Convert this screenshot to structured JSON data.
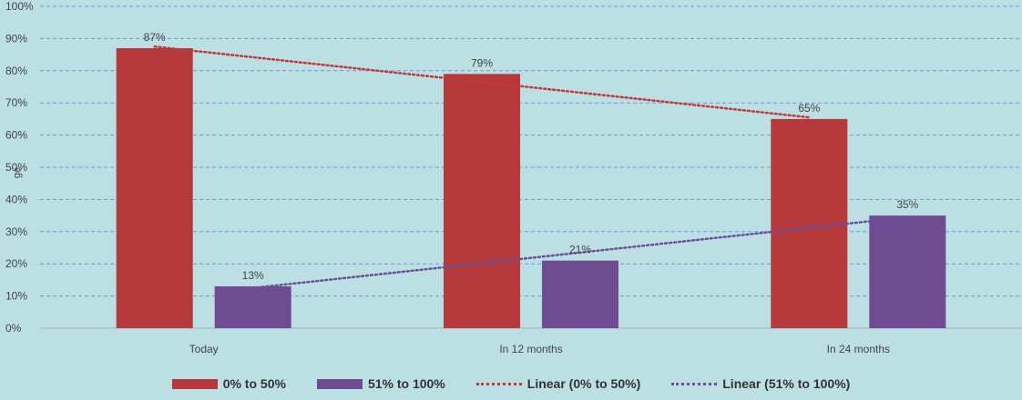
{
  "chart_data": {
    "type": "bar",
    "title": "",
    "xlabel": "",
    "ylabel": "ge",
    "ylim": [
      0,
      100
    ],
    "y_ticks": [
      "0%",
      "10%",
      "20%",
      "30%",
      "40%",
      "50%",
      "60%",
      "70%",
      "80%",
      "90%",
      "100%"
    ],
    "categories": [
      "Today",
      "In 12 months",
      "In 24 months"
    ],
    "grid": true,
    "legend_position": "bottom",
    "series": [
      {
        "name": "0% to 50%",
        "values": [
          87,
          79,
          65
        ],
        "labels": [
          "87%",
          "79%",
          "65%"
        ],
        "color": "#b5393b"
      },
      {
        "name": "51% to 100%",
        "values": [
          13,
          21,
          35
        ],
        "labels": [
          "13%",
          "21%",
          "35%"
        ],
        "color": "#6f4c91"
      }
    ],
    "trendlines": [
      {
        "name": "Linear (0% to 50%)",
        "series": 0,
        "start": 87.5,
        "end": 65.5,
        "color": "#c0393b"
      },
      {
        "name": "Linear (51% to 100%)",
        "series": 1,
        "start": 12.5,
        "end": 34.5,
        "color": "#6b4f9b"
      }
    ]
  }
}
